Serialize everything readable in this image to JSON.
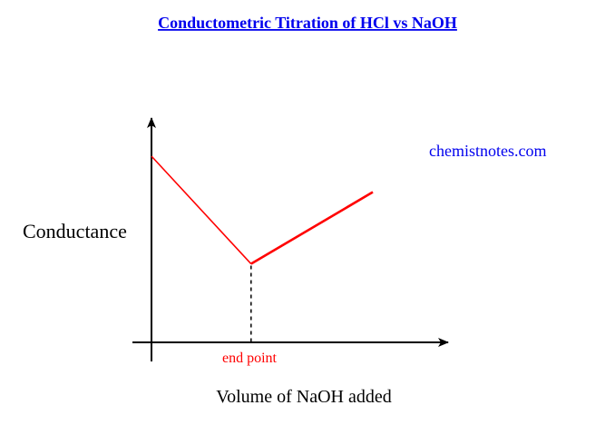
{
  "title": "Conductometric Titration of HCl vs NaOH",
  "watermark": "chemistnotes.com",
  "y_axis_label": "Conductance",
  "x_axis_label": "Volume of NaOH added",
  "end_point_label": "end point",
  "colors": {
    "title": "#0000ee",
    "watermark": "#0000ee",
    "curve": "#ff0000",
    "axes": "#000000",
    "end_point_label": "#ff0000"
  },
  "chart_data": {
    "type": "line",
    "title": "Conductometric Titration of HCl vs NaOH",
    "xlabel": "Volume of NaOH added",
    "ylabel": "Conductance",
    "series": [
      {
        "x": [
          0,
          0.45,
          1.0
        ],
        "y": [
          0.83,
          0.35,
          0.67
        ]
      }
    ],
    "annotations": [
      {
        "text": "end point",
        "x": 0.45,
        "style": "dashed vertical line to x-axis"
      }
    ],
    "grid": false,
    "axis_ticks": false
  }
}
